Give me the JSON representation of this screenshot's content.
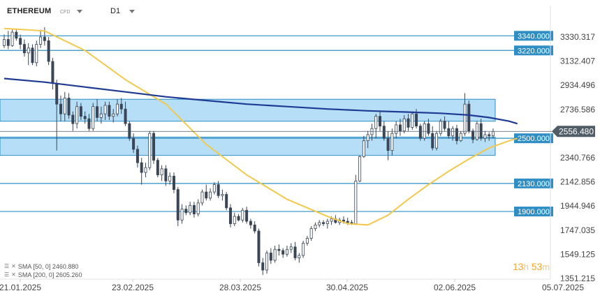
{
  "header": {
    "symbol": "ETHEREUM",
    "type": "CFD",
    "timeframe": "D1"
  },
  "timer": {
    "hours": "13",
    "h": "h",
    "minutes": "53",
    "m": "m"
  },
  "indicators": [
    {
      "label": "SMA [50, 0] 2460.880"
    },
    {
      "label": "SMA [200, 0] 2605.260"
    }
  ],
  "chart_data": {
    "type": "candlestick",
    "y_ticks": [
      "3330.317",
      "3132.407",
      "2934.496",
      "2736.586",
      "2340.766",
      "2142.856",
      "1944.946",
      "1747.035",
      "1549.125",
      "1351.215"
    ],
    "x_ticks": [
      "21.01.2025",
      "23.02.2025",
      "28.03.2025",
      "30.04.2025",
      "02.06.2025",
      "05.07.2025"
    ],
    "ylim": [
      1300,
      3420
    ],
    "levels": [
      {
        "label": "3340.000",
        "value": 3340
      },
      {
        "label": "3220.000",
        "value": 3220
      },
      {
        "label": "2500.000",
        "value": 2500
      },
      {
        "label": "2130.000",
        "value": 2130
      },
      {
        "label": "1900.000",
        "value": 1900
      }
    ],
    "zones": [
      {
        "low": 2640,
        "high": 2820
      },
      {
        "low": 2360,
        "high": 2510
      }
    ],
    "current_price": "2556.480",
    "current_value": 2556.48,
    "candles": [
      [
        3260,
        3350,
        3240,
        3310
      ],
      [
        3310,
        3380,
        3230,
        3260
      ],
      [
        3260,
        3390,
        3250,
        3370
      ],
      [
        3370,
        3400,
        3300,
        3320
      ],
      [
        3320,
        3350,
        3230,
        3270
      ],
      [
        3270,
        3310,
        3170,
        3200
      ],
      [
        3200,
        3280,
        3100,
        3240
      ],
      [
        3240,
        3270,
        3100,
        3120
      ],
      [
        3120,
        3300,
        3090,
        3270
      ],
      [
        3270,
        3390,
        3240,
        3330
      ],
      [
        3330,
        3410,
        3260,
        3300
      ],
      [
        3300,
        3330,
        3100,
        3130
      ],
      [
        3130,
        3160,
        2900,
        2950
      ],
      [
        2950,
        2980,
        2400,
        2780
      ],
      [
        2780,
        2850,
        2640,
        2700
      ],
      [
        2700,
        2880,
        2640,
        2830
      ],
      [
        2830,
        2870,
        2660,
        2690
      ],
      [
        2690,
        2720,
        2560,
        2620
      ],
      [
        2620,
        2800,
        2580,
        2760
      ],
      [
        2760,
        2790,
        2650,
        2680
      ],
      [
        2680,
        2720,
        2620,
        2660
      ],
      [
        2660,
        2700,
        2560,
        2580
      ],
      [
        2580,
        2790,
        2560,
        2760
      ],
      [
        2760,
        2820,
        2640,
        2670
      ],
      [
        2670,
        2760,
        2620,
        2700
      ],
      [
        2700,
        2800,
        2650,
        2770
      ],
      [
        2770,
        2800,
        2650,
        2680
      ],
      [
        2680,
        2740,
        2630,
        2700
      ],
      [
        2700,
        2820,
        2680,
        2780
      ],
      [
        2780,
        2830,
        2700,
        2740
      ],
      [
        2740,
        2800,
        2600,
        2620
      ],
      [
        2620,
        2640,
        2480,
        2500
      ],
      [
        2500,
        2540,
        2380,
        2410
      ],
      [
        2410,
        2440,
        2260,
        2300
      ],
      [
        2300,
        2340,
        2120,
        2220
      ],
      [
        2220,
        2300,
        2180,
        2260
      ],
      [
        2260,
        2560,
        2240,
        2540
      ],
      [
        2540,
        2560,
        2290,
        2320
      ],
      [
        2320,
        2340,
        2180,
        2200
      ],
      [
        2200,
        2280,
        2150,
        2250
      ],
      [
        2250,
        2280,
        2110,
        2150
      ],
      [
        2150,
        2220,
        2120,
        2190
      ],
      [
        2190,
        2220,
        2050,
        2080
      ],
      [
        2080,
        2100,
        1780,
        1830
      ],
      [
        1830,
        1960,
        1800,
        1920
      ],
      [
        1920,
        1950,
        1870,
        1890
      ],
      [
        1890,
        1980,
        1870,
        1950
      ],
      [
        1950,
        1980,
        1850,
        1880
      ],
      [
        1880,
        2000,
        1860,
        1970
      ],
      [
        1970,
        2080,
        1950,
        2060
      ],
      [
        2060,
        2120,
        1990,
        2010
      ],
      [
        2010,
        2090,
        1990,
        2060
      ],
      [
        2060,
        2140,
        2040,
        2120
      ],
      [
        2120,
        2150,
        2010,
        2030
      ],
      [
        2030,
        2080,
        1990,
        2040
      ],
      [
        2040,
        2060,
        1910,
        1930
      ],
      [
        1930,
        1960,
        1770,
        1800
      ],
      [
        1800,
        1890,
        1780,
        1860
      ],
      [
        1860,
        1880,
        1820,
        1830
      ],
      [
        1830,
        1930,
        1810,
        1910
      ],
      [
        1910,
        1940,
        1800,
        1820
      ],
      [
        1820,
        1840,
        1760,
        1790
      ],
      [
        1790,
        1820,
        1720,
        1740
      ],
      [
        1740,
        1760,
        1450,
        1480
      ],
      [
        1480,
        1520,
        1380,
        1420
      ],
      [
        1420,
        1580,
        1390,
        1560
      ],
      [
        1560,
        1600,
        1470,
        1500
      ],
      [
        1500,
        1620,
        1480,
        1590
      ],
      [
        1590,
        1630,
        1540,
        1580
      ],
      [
        1580,
        1600,
        1520,
        1550
      ],
      [
        1550,
        1620,
        1530,
        1590
      ],
      [
        1590,
        1640,
        1560,
        1610
      ],
      [
        1610,
        1650,
        1500,
        1520
      ],
      [
        1520,
        1560,
        1480,
        1540
      ],
      [
        1540,
        1660,
        1520,
        1640
      ],
      [
        1640,
        1700,
        1620,
        1680
      ],
      [
        1680,
        1780,
        1660,
        1760
      ],
      [
        1760,
        1810,
        1740,
        1790
      ],
      [
        1790,
        1830,
        1770,
        1810
      ],
      [
        1810,
        1830,
        1780,
        1800
      ],
      [
        1800,
        1840,
        1760,
        1820
      ],
      [
        1820,
        1860,
        1790,
        1840
      ],
      [
        1840,
        1870,
        1800,
        1810
      ],
      [
        1810,
        1850,
        1790,
        1830
      ],
      [
        1830,
        1860,
        1800,
        1820
      ],
      [
        1820,
        1850,
        1790,
        1810
      ],
      [
        1810,
        1830,
        1790,
        1800
      ],
      [
        1800,
        2200,
        1790,
        2150
      ],
      [
        2150,
        2360,
        2140,
        2350
      ],
      [
        2350,
        2520,
        2340,
        2480
      ],
      [
        2480,
        2560,
        2420,
        2530
      ],
      [
        2530,
        2620,
        2480,
        2580
      ],
      [
        2580,
        2700,
        2500,
        2680
      ],
      [
        2680,
        2720,
        2560,
        2600
      ],
      [
        2600,
        2640,
        2480,
        2500
      ],
      [
        2500,
        2560,
        2320,
        2400
      ],
      [
        2400,
        2580,
        2360,
        2540
      ],
      [
        2540,
        2640,
        2500,
        2610
      ],
      [
        2610,
        2660,
        2520,
        2560
      ],
      [
        2560,
        2690,
        2540,
        2660
      ],
      [
        2660,
        2700,
        2560,
        2590
      ],
      [
        2590,
        2720,
        2570,
        2700
      ],
      [
        2700,
        2740,
        2580,
        2600
      ],
      [
        2600,
        2620,
        2480,
        2500
      ],
      [
        2500,
        2640,
        2480,
        2620
      ],
      [
        2620,
        2660,
        2520,
        2540
      ],
      [
        2540,
        2600,
        2400,
        2420
      ],
      [
        2420,
        2560,
        2400,
        2540
      ],
      [
        2540,
        2660,
        2520,
        2640
      ],
      [
        2640,
        2680,
        2560,
        2580
      ],
      [
        2580,
        2640,
        2500,
        2520
      ],
      [
        2520,
        2600,
        2480,
        2580
      ],
      [
        2580,
        2610,
        2450,
        2480
      ],
      [
        2480,
        2560,
        2470,
        2540
      ],
      [
        2540,
        2870,
        2520,
        2780
      ],
      [
        2780,
        2810,
        2540,
        2560
      ],
      [
        2560,
        2580,
        2460,
        2490
      ],
      [
        2490,
        2640,
        2480,
        2620
      ],
      [
        2620,
        2660,
        2480,
        2500
      ],
      [
        2500,
        2560,
        2470,
        2530
      ],
      [
        2530,
        2550,
        2480,
        2520
      ],
      [
        2520,
        2580,
        2500,
        2556
      ]
    ],
    "series": [
      {
        "name": "SMA [50, 0]",
        "color": "#f2c94c",
        "points": [
          [
            0,
            3400
          ],
          [
            10,
            3380
          ],
          [
            20,
            3220
          ],
          [
            30,
            2980
          ],
          [
            40,
            2780
          ],
          [
            50,
            2450
          ],
          [
            60,
            2200
          ],
          [
            70,
            2000
          ],
          [
            80,
            1860
          ],
          [
            85,
            1800
          ],
          [
            90,
            1790
          ],
          [
            95,
            1870
          ],
          [
            100,
            2000
          ],
          [
            105,
            2120
          ],
          [
            110,
            2230
          ],
          [
            115,
            2330
          ],
          [
            120,
            2420
          ],
          [
            125,
            2480
          ],
          [
            127,
            2500
          ]
        ]
      },
      {
        "name": "SMA [200, 0]",
        "color": "#1f3a93",
        "points": [
          [
            0,
            2990
          ],
          [
            10,
            2960
          ],
          [
            20,
            2920
          ],
          [
            30,
            2880
          ],
          [
            40,
            2840
          ],
          [
            50,
            2810
          ],
          [
            60,
            2780
          ],
          [
            70,
            2760
          ],
          [
            80,
            2740
          ],
          [
            90,
            2725
          ],
          [
            100,
            2715
          ],
          [
            108,
            2705
          ],
          [
            115,
            2690
          ],
          [
            120,
            2670
          ],
          [
            125,
            2640
          ],
          [
            127,
            2620
          ]
        ]
      }
    ]
  }
}
